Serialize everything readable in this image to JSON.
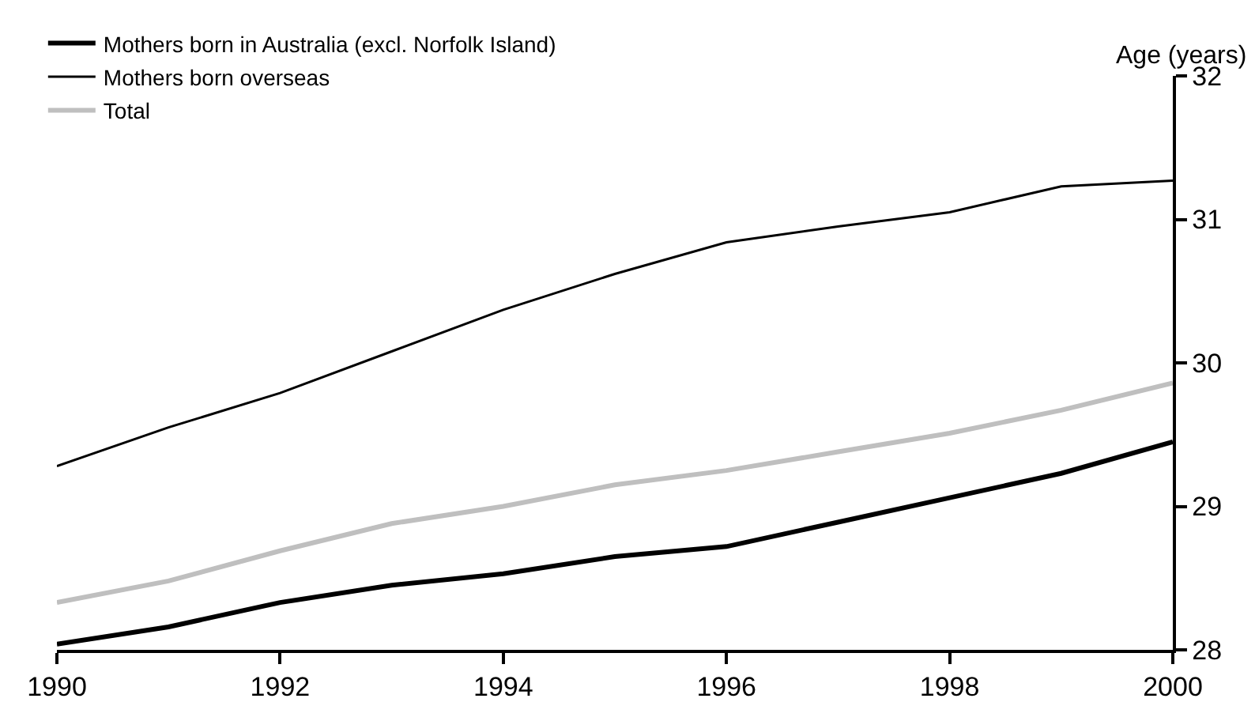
{
  "chart_data": {
    "type": "line",
    "ylabel": "Age (years)",
    "x": [
      1990,
      1991,
      1992,
      1993,
      1994,
      1995,
      1996,
      1997,
      1998,
      1999,
      2000
    ],
    "series": [
      {
        "name": "Mothers born in Australia (excl. Norfolk Island)",
        "color": "#000000",
        "values": [
          28.04,
          28.16,
          28.33,
          28.45,
          28.53,
          28.65,
          28.72,
          28.89,
          29.06,
          29.23,
          29.45
        ]
      },
      {
        "name": "Mothers born overseas",
        "color": "#000000",
        "values": [
          29.28,
          29.55,
          29.79,
          30.08,
          30.37,
          30.62,
          30.84,
          30.95,
          31.05,
          31.23,
          31.27
        ]
      },
      {
        "name": "Total",
        "color": "#bfbfbf",
        "values": [
          28.33,
          28.48,
          28.69,
          28.88,
          29.0,
          29.15,
          29.25,
          29.38,
          29.51,
          29.67,
          29.86
        ]
      }
    ],
    "xlim": [
      1990,
      2000
    ],
    "xticks": [
      1990,
      1992,
      1994,
      1996,
      1998,
      2000
    ],
    "ylim": [
      28,
      32
    ],
    "yticks": [
      28,
      29,
      30,
      31,
      32
    ],
    "legend": "top left",
    "marker": "none",
    "line_style": "solid"
  }
}
